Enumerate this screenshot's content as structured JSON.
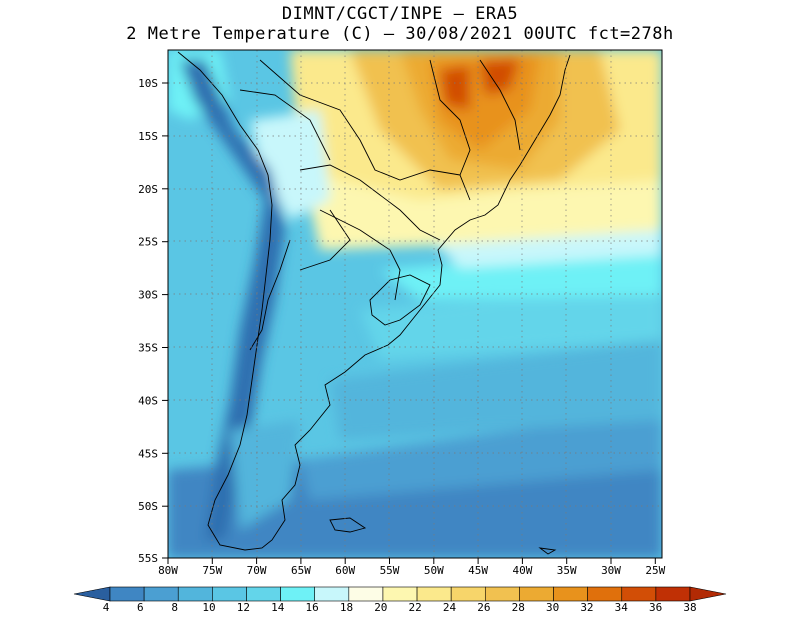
{
  "title": {
    "line1": "DIMNT/CGCT/INPE –  ERA5",
    "line2": "2 Metre Temperature (C) –  30/08/2021 00UTC fct=278h"
  },
  "map": {
    "lat_labels": [
      "10S",
      "15S",
      "20S",
      "25S",
      "30S",
      "35S",
      "40S",
      "45S",
      "50S",
      "55S"
    ],
    "lon_labels": [
      "80W",
      "75W",
      "70W",
      "65W",
      "60W",
      "55W",
      "50W",
      "45W",
      "40W",
      "35W",
      "30W",
      "25W"
    ]
  },
  "colorbar": {
    "labels": [
      "4",
      "6",
      "8",
      "10",
      "12",
      "14",
      "16",
      "18",
      "20",
      "22",
      "24",
      "26",
      "28",
      "30",
      "32",
      "34",
      "36",
      "38"
    ],
    "colors": [
      "#2e6fb0",
      "#3f86c3",
      "#4b9fd2",
      "#52b5dc",
      "#5ac6e4",
      "#63d5ea",
      "#6ef1f6",
      "#c8f7fb",
      "#fdfde6",
      "#fdf7b0",
      "#fbe98c",
      "#f7d56a",
      "#f1c150",
      "#ecaa32",
      "#e8921c",
      "#e0700c",
      "#d24e06",
      "#c03005"
    ],
    "left_color": "#2a5f9f",
    "right_color": "#b22a04"
  }
}
